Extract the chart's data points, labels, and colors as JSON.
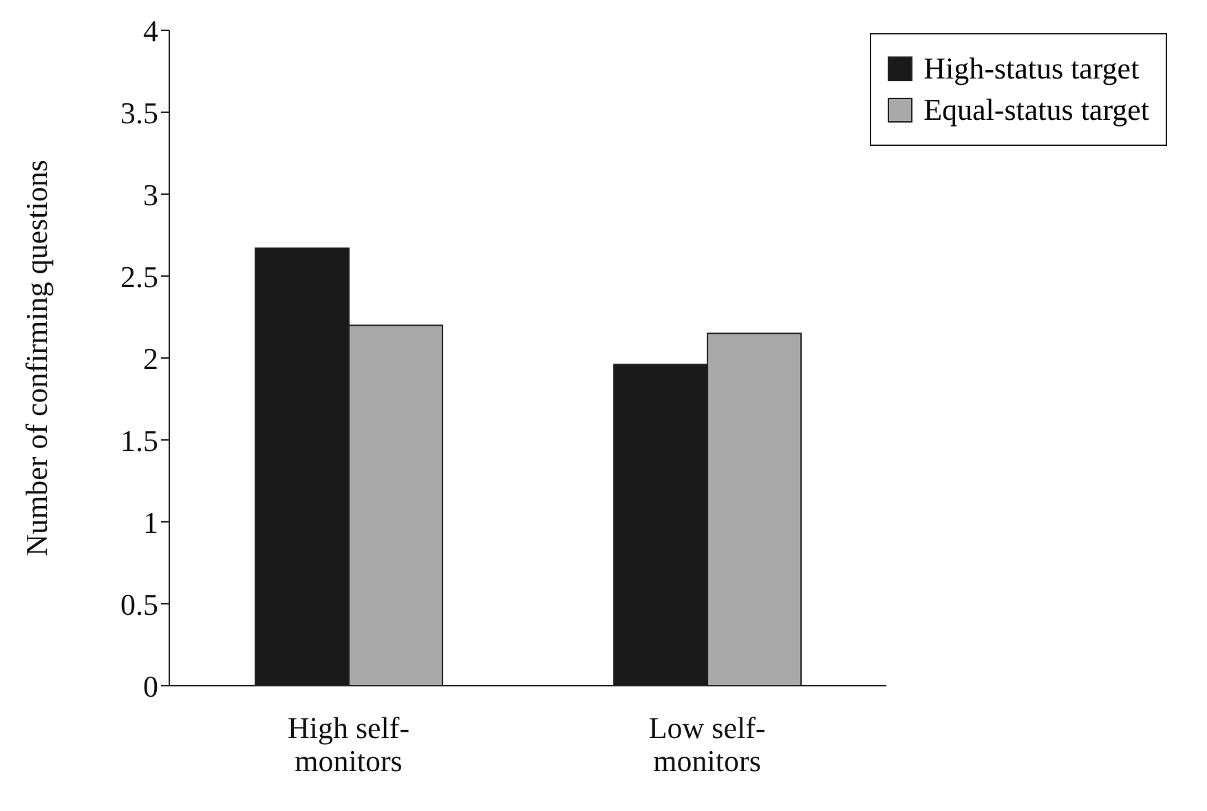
{
  "chart_data": {
    "type": "bar",
    "ylabel": "Number of confirming questions",
    "categories": [
      "High self-monitors",
      "Low self-monitors"
    ],
    "series": [
      {
        "name": "High-status target",
        "color": "#1a1a1a",
        "values": [
          2.67,
          1.96
        ]
      },
      {
        "name": "Equal-status target",
        "color": "#a9a9a9",
        "values": [
          2.2,
          2.15
        ]
      }
    ],
    "ylim": [
      0,
      4
    ],
    "yticks": [
      0,
      0.5,
      1,
      1.5,
      2,
      2.5,
      3,
      3.5,
      4
    ],
    "grid": false,
    "legend": "top right"
  }
}
